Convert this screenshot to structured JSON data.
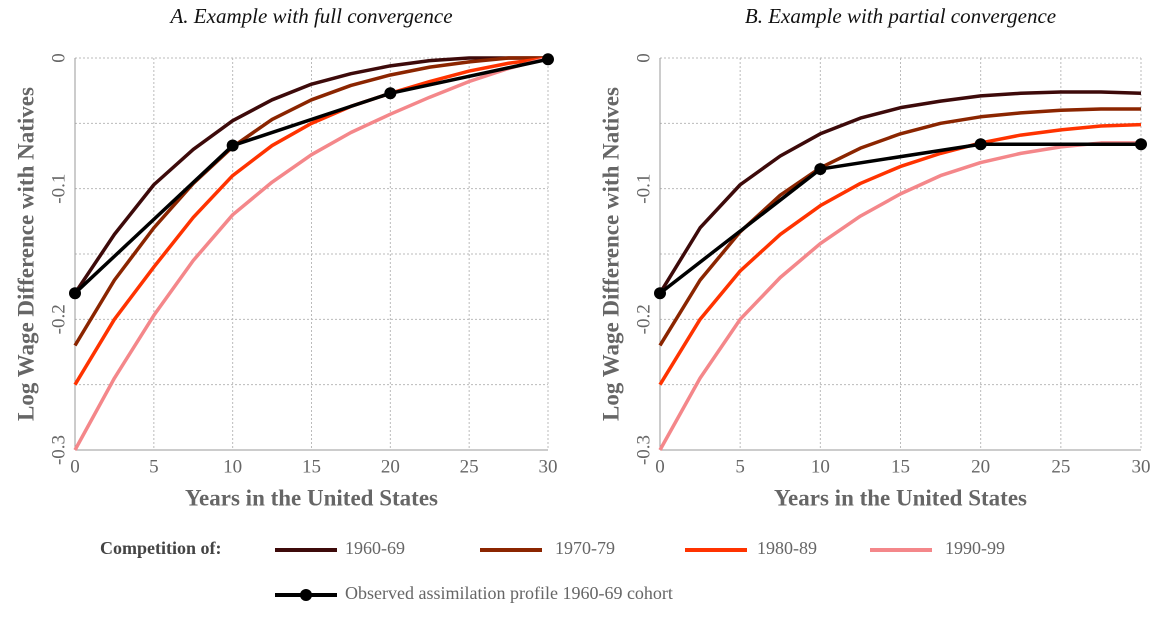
{
  "chart_data": [
    {
      "type": "line",
      "title": "A. Example with full convergence",
      "x_label": "Years in the United States",
      "y_label": "Log Wage Difference with Natives",
      "xlim": [
        0,
        30
      ],
      "ylim": [
        -0.3,
        0
      ],
      "xticks": [
        0,
        5,
        10,
        15,
        20,
        25,
        30
      ],
      "yticks": [
        0,
        -0.1,
        -0.2,
        -0.3
      ],
      "yminor": [
        -0.05,
        -0.15,
        -0.25
      ],
      "grid": true,
      "x": [
        0,
        2.5,
        5,
        7.5,
        10,
        12.5,
        15,
        17.5,
        20,
        22.5,
        25,
        27.5,
        30
      ],
      "series": [
        {
          "name": "1960-69",
          "color": "#3d0a0a",
          "values": [
            -0.18,
            -0.135,
            -0.097,
            -0.07,
            -0.048,
            -0.032,
            -0.02,
            -0.012,
            -0.006,
            -0.002,
            0,
            0,
            0
          ]
        },
        {
          "name": "1970-79",
          "color": "#8b2500",
          "values": [
            -0.22,
            -0.17,
            -0.13,
            -0.096,
            -0.068,
            -0.047,
            -0.032,
            -0.021,
            -0.013,
            -0.007,
            -0.003,
            0,
            0
          ]
        },
        {
          "name": "1980-89",
          "color": "#ff3300",
          "values": [
            -0.25,
            -0.2,
            -0.16,
            -0.122,
            -0.09,
            -0.067,
            -0.05,
            -0.037,
            -0.027,
            -0.018,
            -0.01,
            -0.004,
            0
          ]
        },
        {
          "name": "1990-99",
          "color": "#f4878a",
          "values": [
            -0.3,
            -0.245,
            -0.197,
            -0.155,
            -0.12,
            -0.095,
            -0.074,
            -0.057,
            -0.043,
            -0.03,
            -0.018,
            -0.008,
            0
          ]
        }
      ],
      "observed": {
        "name": "Observed assimilation profile 1960-69 cohort",
        "color": "#000000",
        "x": [
          0,
          10,
          20,
          30
        ],
        "values": [
          -0.18,
          -0.067,
          -0.027,
          -0.001
        ]
      }
    },
    {
      "type": "line",
      "title": "B. Example with partial convergence",
      "x_label": "Years in the United States",
      "y_label": "Log Wage Difference with Natives",
      "xlim": [
        0,
        30
      ],
      "ylim": [
        -0.3,
        0
      ],
      "xticks": [
        0,
        5,
        10,
        15,
        20,
        25,
        30
      ],
      "yticks": [
        0,
        -0.1,
        -0.2,
        -0.3
      ],
      "yminor": [
        -0.05,
        -0.15,
        -0.25
      ],
      "grid": true,
      "x": [
        0,
        2.5,
        5,
        7.5,
        10,
        12.5,
        15,
        17.5,
        20,
        22.5,
        25,
        27.5,
        30
      ],
      "series": [
        {
          "color": "#3d0a0a",
          "values": [
            -0.18,
            -0.13,
            -0.097,
            -0.075,
            -0.058,
            -0.046,
            -0.038,
            -0.033,
            -0.029,
            -0.027,
            -0.026,
            -0.026,
            -0.027
          ]
        },
        {
          "color": "#8b2500",
          "values": [
            -0.22,
            -0.17,
            -0.133,
            -0.105,
            -0.084,
            -0.069,
            -0.058,
            -0.05,
            -0.045,
            -0.042,
            -0.04,
            -0.039,
            -0.039
          ]
        },
        {
          "color": "#ff3300",
          "values": [
            -0.25,
            -0.2,
            -0.163,
            -0.135,
            -0.113,
            -0.096,
            -0.083,
            -0.073,
            -0.065,
            -0.059,
            -0.055,
            -0.052,
            -0.051
          ]
        },
        {
          "color": "#f4878a",
          "values": [
            -0.3,
            -0.245,
            -0.2,
            -0.168,
            -0.142,
            -0.121,
            -0.104,
            -0.09,
            -0.08,
            -0.073,
            -0.068,
            -0.065,
            -0.065
          ]
        }
      ],
      "observed": {
        "color": "#000000",
        "x": [
          0,
          10,
          20,
          30
        ],
        "values": [
          -0.18,
          -0.085,
          -0.066,
          -0.066
        ]
      }
    }
  ],
  "legend_title": "Competition of:"
}
